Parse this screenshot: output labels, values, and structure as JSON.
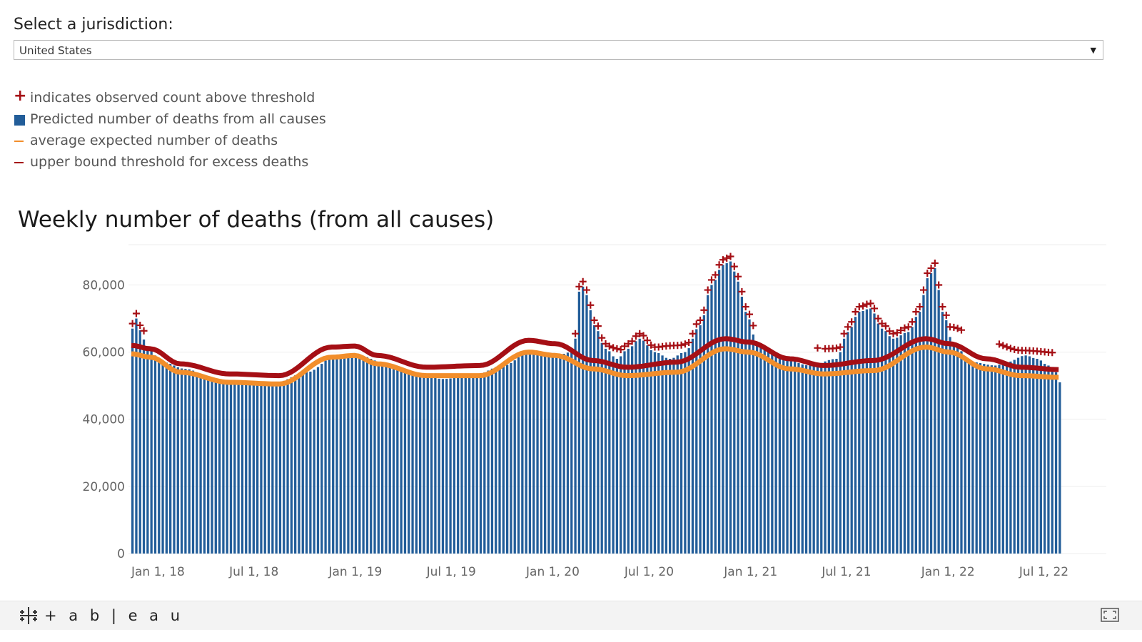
{
  "selector": {
    "label": "Select a jurisdiction:",
    "value": "United States"
  },
  "legend": [
    {
      "icon": "plus-icon",
      "color": "#a50f15",
      "label": "indicates observed count above threshold"
    },
    {
      "icon": "square-icon",
      "color": "#225d99",
      "label": "Predicted number of deaths from all causes"
    },
    {
      "icon": "line-icon",
      "color": "#f28e2b",
      "label": "average expected number of deaths"
    },
    {
      "icon": "line-icon",
      "color": "#a50f15",
      "label": "upper bound threshold for excess deaths"
    }
  ],
  "footer": {
    "brand": "+ a b | e a u"
  },
  "chart_data": {
    "type": "bar",
    "title": "Weekly number of deaths (from all causes)",
    "xlabel": "",
    "ylabel": "",
    "ylim": [
      0,
      92000
    ],
    "yticks": [
      0,
      20000,
      40000,
      60000,
      80000
    ],
    "ytick_labels": [
      "0",
      "20,000",
      "40,000",
      "60,000",
      "80,000"
    ],
    "x_start": "2018-01-01",
    "x_end": "2022-09-17",
    "xticks": [
      "2018-01-01",
      "2018-07-01",
      "2019-01-01",
      "2019-07-01",
      "2020-01-01",
      "2020-07-01",
      "2021-01-01",
      "2021-07-01",
      "2022-01-01",
      "2022-07-01"
    ],
    "xtick_labels": [
      "Jan 1, 18",
      "Jul 1, 18",
      "Jan 1, 19",
      "Jul 1, 19",
      "Jan 1, 20",
      "Jul 1, 20",
      "Jan 1, 21",
      "Jul 1, 21",
      "Jan 1, 22",
      "Jul 1, 22"
    ],
    "colors": {
      "bars": "#225d99",
      "average": "#f28e2b",
      "threshold": "#a50f15",
      "markers": "#a50f15"
    },
    "grid": true,
    "weekly_observed_anchors": [
      [
        "2018-01-01",
        67000
      ],
      [
        "2018-01-08",
        70000
      ],
      [
        "2018-01-15",
        66500
      ],
      [
        "2018-01-29",
        61000
      ],
      [
        "2018-02-26",
        57000
      ],
      [
        "2018-04-09",
        55000
      ],
      [
        "2018-06-04",
        51500
      ],
      [
        "2018-07-30",
        51000
      ],
      [
        "2018-09-24",
        51000
      ],
      [
        "2018-11-19",
        54000
      ],
      [
        "2019-01-14",
        59000
      ],
      [
        "2019-02-25",
        59000
      ],
      [
        "2019-04-08",
        57000
      ],
      [
        "2019-06-03",
        54000
      ],
      [
        "2019-07-29",
        52000
      ],
      [
        "2019-09-23",
        53000
      ],
      [
        "2019-11-18",
        56000
      ],
      [
        "2020-01-06",
        60000
      ],
      [
        "2020-02-24",
        59000
      ],
      [
        "2020-03-23",
        60000
      ],
      [
        "2020-03-30",
        64000
      ],
      [
        "2020-04-06",
        78000
      ],
      [
        "2020-04-13",
        79500
      ],
      [
        "2020-04-20",
        77000
      ],
      [
        "2020-05-04",
        68000
      ],
      [
        "2020-05-25",
        61000
      ],
      [
        "2020-06-15",
        58000
      ],
      [
        "2020-07-06",
        61000
      ],
      [
        "2020-07-27",
        64000
      ],
      [
        "2020-08-24",
        60000
      ],
      [
        "2020-09-21",
        58000
      ],
      [
        "2020-10-19",
        60000
      ],
      [
        "2020-11-16",
        68000
      ],
      [
        "2020-12-07",
        80000
      ],
      [
        "2020-12-28",
        86000
      ],
      [
        "2021-01-11",
        87000
      ],
      [
        "2021-01-25",
        81000
      ],
      [
        "2021-02-08",
        72000
      ],
      [
        "2021-03-01",
        63000
      ],
      [
        "2021-04-05",
        59000
      ],
      [
        "2021-06-07",
        56000
      ],
      [
        "2021-07-26",
        58000
      ],
      [
        "2021-08-16",
        66000
      ],
      [
        "2021-09-06",
        72000
      ],
      [
        "2021-09-27",
        73000
      ],
      [
        "2021-10-18",
        67000
      ],
      [
        "2021-11-08",
        64000
      ],
      [
        "2021-12-06",
        66000
      ],
      [
        "2021-12-27",
        72000
      ],
      [
        "2022-01-10",
        82000
      ],
      [
        "2022-01-24",
        85000
      ],
      [
        "2022-02-07",
        72000
      ],
      [
        "2022-02-28",
        62000
      ],
      [
        "2022-04-04",
        57000
      ],
      [
        "2022-05-16",
        56000
      ],
      [
        "2022-06-06",
        57000
      ],
      [
        "2022-07-11",
        59000
      ],
      [
        "2022-08-01",
        58000
      ],
      [
        "2022-08-22",
        56000
      ],
      [
        "2022-09-05",
        54000
      ],
      [
        "2022-09-12",
        51000
      ]
    ],
    "average_expected_anchors": [
      [
        "2018-01-01",
        59500
      ],
      [
        "2018-02-05",
        58500
      ],
      [
        "2018-04-02",
        54000
      ],
      [
        "2018-07-02",
        51000
      ],
      [
        "2018-10-01",
        50500
      ],
      [
        "2019-01-07",
        58500
      ],
      [
        "2019-02-18",
        59000
      ],
      [
        "2019-04-01",
        56500
      ],
      [
        "2019-07-01",
        53000
      ],
      [
        "2019-10-07",
        53000
      ],
      [
        "2020-01-06",
        60000
      ],
      [
        "2020-02-24",
        59000
      ],
      [
        "2020-05-04",
        55000
      ],
      [
        "2020-07-06",
        53000
      ],
      [
        "2020-10-05",
        54000
      ],
      [
        "2021-01-04",
        61000
      ],
      [
        "2021-02-15",
        60000
      ],
      [
        "2021-05-03",
        55000
      ],
      [
        "2021-07-05",
        53500
      ],
      [
        "2021-10-04",
        54500
      ],
      [
        "2022-01-10",
        61500
      ],
      [
        "2022-02-21",
        60000
      ],
      [
        "2022-05-02",
        55000
      ],
      [
        "2022-07-04",
        53000
      ],
      [
        "2022-09-12",
        52500
      ]
    ],
    "upper_threshold_anchors": [
      [
        "2018-01-01",
        62000
      ],
      [
        "2018-02-05",
        61000
      ],
      [
        "2018-04-02",
        56500
      ],
      [
        "2018-07-02",
        53500
      ],
      [
        "2018-10-01",
        53000
      ],
      [
        "2019-01-07",
        61500
      ],
      [
        "2019-02-18",
        61800
      ],
      [
        "2019-04-01",
        59000
      ],
      [
        "2019-07-01",
        55500
      ],
      [
        "2019-10-07",
        56000
      ],
      [
        "2020-01-06",
        63500
      ],
      [
        "2020-02-24",
        62500
      ],
      [
        "2020-05-04",
        57500
      ],
      [
        "2020-07-06",
        55500
      ],
      [
        "2020-10-05",
        57000
      ],
      [
        "2021-01-04",
        64000
      ],
      [
        "2021-02-15",
        63000
      ],
      [
        "2021-05-03",
        58000
      ],
      [
        "2021-07-05",
        56000
      ],
      [
        "2021-10-04",
        57500
      ],
      [
        "2022-01-10",
        64000
      ],
      [
        "2022-02-21",
        62500
      ],
      [
        "2022-05-02",
        58000
      ],
      [
        "2022-07-04",
        55500
      ],
      [
        "2022-09-12",
        54800
      ]
    ],
    "above_threshold_marker_ranges": [
      [
        "2018-01-01",
        "2018-01-22"
      ],
      [
        "2020-03-30",
        "2020-07-27"
      ],
      [
        "2020-07-27",
        "2021-02-22"
      ],
      [
        "2021-06-21",
        "2021-06-21"
      ],
      [
        "2021-07-05",
        "2021-08-23"
      ],
      [
        "2021-08-23",
        "2022-03-14"
      ],
      [
        "2022-05-23",
        "2022-08-29"
      ]
    ]
  }
}
